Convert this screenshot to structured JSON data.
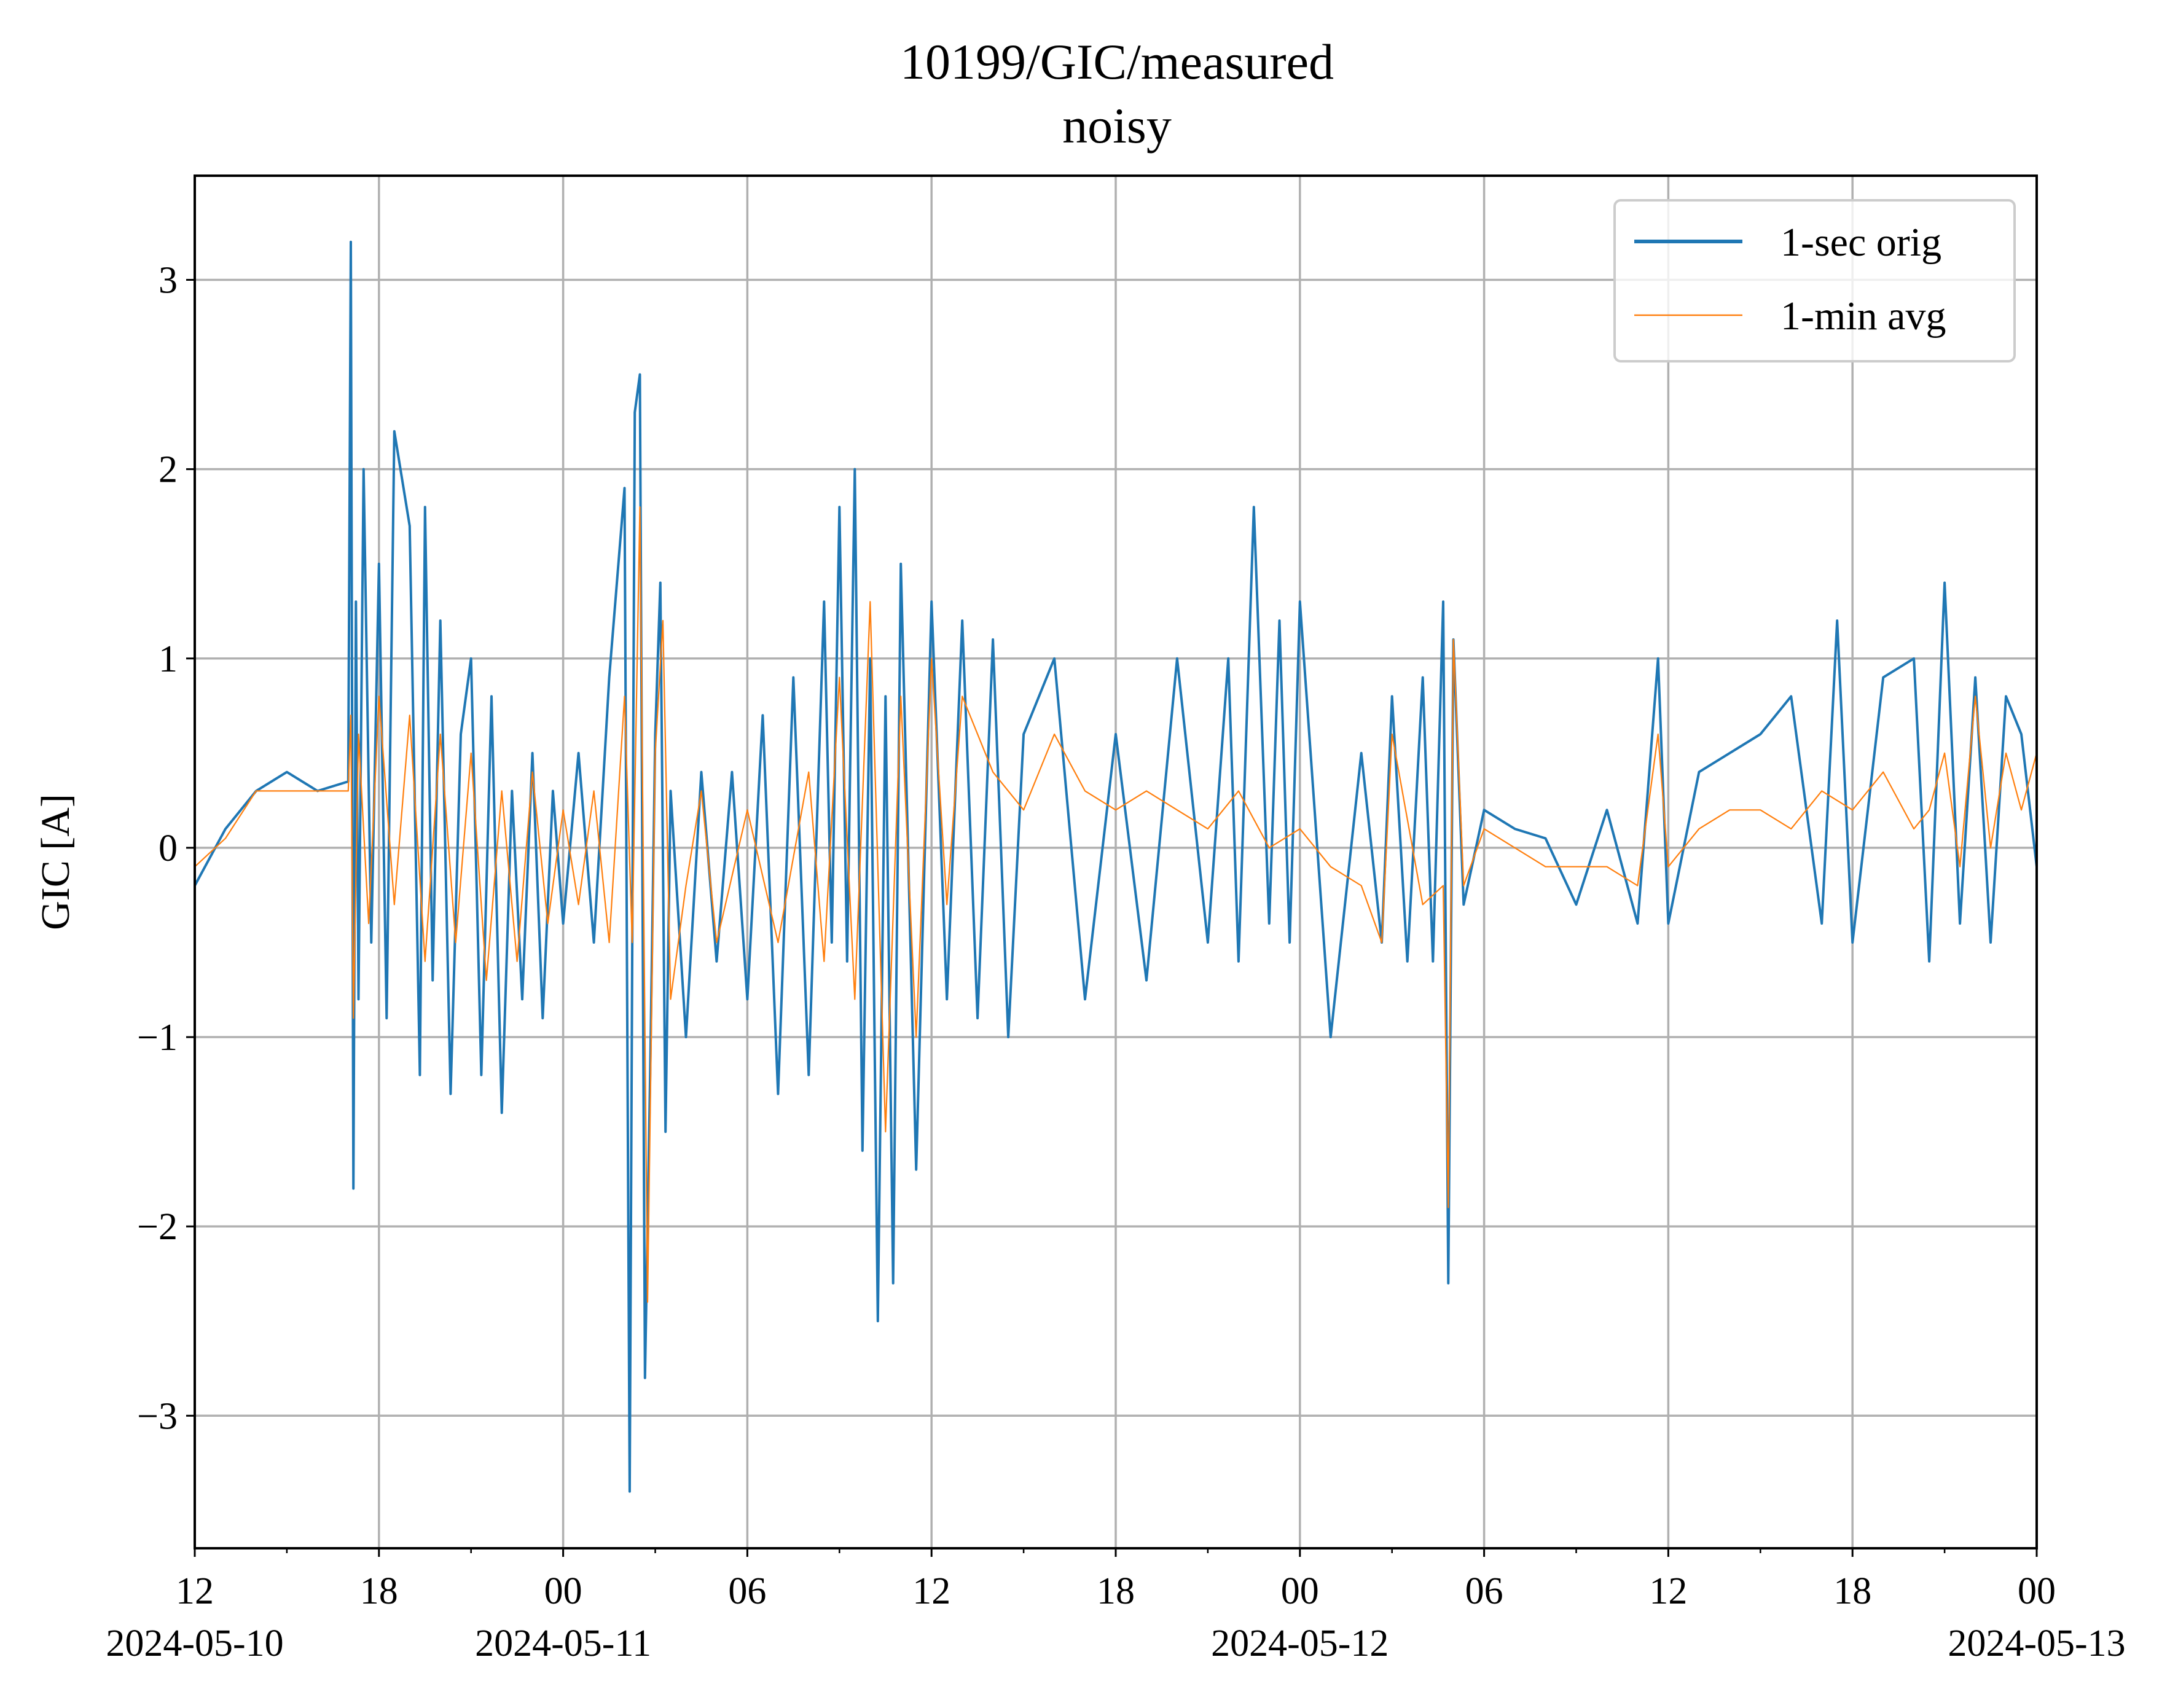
{
  "chart_data": {
    "type": "line",
    "title": "10199/GIC/measured",
    "subtitle": "noisy",
    "xlabel": "",
    "ylabel": "GIC [A]",
    "x_range": [
      "2024-05-10 12:00",
      "2024-05-13 00:00"
    ],
    "ylim": [
      -3.7,
      3.55
    ],
    "y_ticks": [
      3,
      2,
      1,
      0,
      -1,
      -2,
      -3
    ],
    "y_tick_labels": [
      "3",
      "2",
      "1",
      "0",
      "−1",
      "−2",
      "−3"
    ],
    "x_ticks": [
      {
        "time": "2024-05-10 12:00",
        "label": "12",
        "date": "2024-05-10"
      },
      {
        "time": "2024-05-10 18:00",
        "label": "18",
        "date": ""
      },
      {
        "time": "2024-05-11 00:00",
        "label": "00",
        "date": "2024-05-11"
      },
      {
        "time": "2024-05-11 06:00",
        "label": "06",
        "date": ""
      },
      {
        "time": "2024-05-11 12:00",
        "label": "12",
        "date": ""
      },
      {
        "time": "2024-05-11 18:00",
        "label": "18",
        "date": ""
      },
      {
        "time": "2024-05-12 00:00",
        "label": "00",
        "date": "2024-05-12"
      },
      {
        "time": "2024-05-12 06:00",
        "label": "06",
        "date": ""
      },
      {
        "time": "2024-05-12 12:00",
        "label": "12",
        "date": ""
      },
      {
        "time": "2024-05-12 18:00",
        "label": "18",
        "date": ""
      },
      {
        "time": "2024-05-13 00:00",
        "label": "00",
        "date": "2024-05-13"
      }
    ],
    "grid": true,
    "legend_position": "top-right",
    "series": [
      {
        "name": "1-sec orig",
        "color": "#1f77b4",
        "x": [
          "2024-05-10 12:00",
          "2024-05-10 13:00",
          "2024-05-10 14:00",
          "2024-05-10 15:00",
          "2024-05-10 16:00",
          "2024-05-10 17:00",
          "2024-05-10 17:05",
          "2024-05-10 17:10",
          "2024-05-10 17:15",
          "2024-05-10 17:20",
          "2024-05-10 17:30",
          "2024-05-10 17:45",
          "2024-05-10 18:00",
          "2024-05-10 18:15",
          "2024-05-10 18:30",
          "2024-05-10 19:00",
          "2024-05-10 19:20",
          "2024-05-10 19:30",
          "2024-05-10 19:45",
          "2024-05-10 20:00",
          "2024-05-10 20:20",
          "2024-05-10 20:40",
          "2024-05-10 21:00",
          "2024-05-10 21:20",
          "2024-05-10 21:40",
          "2024-05-10 22:00",
          "2024-05-10 22:20",
          "2024-05-10 22:40",
          "2024-05-10 23:00",
          "2024-05-10 23:20",
          "2024-05-10 23:40",
          "2024-05-11 00:00",
          "2024-05-11 00:30",
          "2024-05-11 01:00",
          "2024-05-11 01:30",
          "2024-05-11 02:00",
          "2024-05-11 02:10",
          "2024-05-11 02:20",
          "2024-05-11 02:30",
          "2024-05-11 02:40",
          "2024-05-11 02:50",
          "2024-05-11 03:00",
          "2024-05-11 03:10",
          "2024-05-11 03:20",
          "2024-05-11 03:30",
          "2024-05-11 04:00",
          "2024-05-11 04:30",
          "2024-05-11 05:00",
          "2024-05-11 05:30",
          "2024-05-11 06:00",
          "2024-05-11 06:30",
          "2024-05-11 07:00",
          "2024-05-11 07:30",
          "2024-05-11 08:00",
          "2024-05-11 08:30",
          "2024-05-11 08:45",
          "2024-05-11 09:00",
          "2024-05-11 09:15",
          "2024-05-11 09:30",
          "2024-05-11 09:45",
          "2024-05-11 10:00",
          "2024-05-11 10:15",
          "2024-05-11 10:30",
          "2024-05-11 10:45",
          "2024-05-11 11:00",
          "2024-05-11 11:30",
          "2024-05-11 12:00",
          "2024-05-11 12:30",
          "2024-05-11 13:00",
          "2024-05-11 13:30",
          "2024-05-11 14:00",
          "2024-05-11 14:30",
          "2024-05-11 15:00",
          "2024-05-11 16:00",
          "2024-05-11 17:00",
          "2024-05-11 18:00",
          "2024-05-11 19:00",
          "2024-05-11 20:00",
          "2024-05-11 21:00",
          "2024-05-11 21:40",
          "2024-05-11 22:00",
          "2024-05-11 22:30",
          "2024-05-11 23:00",
          "2024-05-11 23:20",
          "2024-05-11 23:40",
          "2024-05-12 00:00",
          "2024-05-12 01:00",
          "2024-05-12 02:00",
          "2024-05-12 02:40",
          "2024-05-12 03:00",
          "2024-05-12 03:30",
          "2024-05-12 04:00",
          "2024-05-12 04:20",
          "2024-05-12 04:40",
          "2024-05-12 04:50",
          "2024-05-12 05:00",
          "2024-05-12 05:20",
          "2024-05-12 06:00",
          "2024-05-12 07:00",
          "2024-05-12 08:00",
          "2024-05-12 09:00",
          "2024-05-12 10:00",
          "2024-05-12 11:00",
          "2024-05-12 11:40",
          "2024-05-12 12:00",
          "2024-05-12 13:00",
          "2024-05-12 14:00",
          "2024-05-12 15:00",
          "2024-05-12 16:00",
          "2024-05-12 17:00",
          "2024-05-12 17:30",
          "2024-05-12 18:00",
          "2024-05-12 19:00",
          "2024-05-12 20:00",
          "2024-05-12 20:30",
          "2024-05-12 21:00",
          "2024-05-12 21:30",
          "2024-05-12 22:00",
          "2024-05-12 22:30",
          "2024-05-12 23:00",
          "2024-05-12 23:30",
          "2024-05-13 00:00"
        ],
        "y": [
          -0.2,
          0.1,
          0.3,
          0.4,
          0.3,
          0.35,
          3.2,
          -1.8,
          1.3,
          -0.8,
          2.0,
          -0.5,
          1.5,
          -0.9,
          2.2,
          1.7,
          -1.2,
          1.8,
          -0.7,
          1.2,
          -1.3,
          0.6,
          1.0,
          -1.2,
          0.8,
          -1.4,
          0.3,
          -0.8,
          0.5,
          -0.9,
          0.3,
          -0.4,
          0.5,
          -0.5,
          0.9,
          1.9,
          -3.4,
          2.3,
          2.5,
          -2.8,
          -1.2,
          0.6,
          1.4,
          -1.5,
          0.3,
          -1.0,
          0.4,
          -0.6,
          0.4,
          -0.8,
          0.7,
          -1.3,
          0.9,
          -1.2,
          1.3,
          -0.5,
          1.8,
          -0.6,
          2.0,
          -1.6,
          1.0,
          -2.5,
          0.8,
          -2.3,
          1.5,
          -1.7,
          1.3,
          -0.8,
          1.2,
          -0.9,
          1.1,
          -1.0,
          0.6,
          1.0,
          -0.8,
          0.6,
          -0.7,
          1.0,
          -0.5,
          1.0,
          -0.6,
          1.8,
          -0.4,
          1.2,
          -0.5,
          1.3,
          -1.0,
          0.5,
          -0.5,
          0.8,
          -0.6,
          0.9,
          -0.6,
          1.3,
          -2.3,
          1.1,
          -0.3,
          0.2,
          0.1,
          0.05,
          -0.3,
          0.2,
          -0.4,
          1.0,
          -0.4,
          0.4,
          0.5,
          0.6,
          0.8,
          -0.4,
          1.2,
          -0.5,
          0.9,
          1.0,
          -0.6,
          1.4,
          -0.4,
          0.9,
          -0.5,
          0.8,
          0.6,
          -0.1
        ]
      },
      {
        "name": "1-min avg",
        "color": "#ff7f0e",
        "x": [
          "2024-05-10 12:00",
          "2024-05-10 13:00",
          "2024-05-10 14:00",
          "2024-05-10 15:00",
          "2024-05-10 16:00",
          "2024-05-10 17:00",
          "2024-05-10 17:05",
          "2024-05-10 17:10",
          "2024-05-10 17:20",
          "2024-05-10 17:40",
          "2024-05-10 18:00",
          "2024-05-10 18:30",
          "2024-05-10 19:00",
          "2024-05-10 19:30",
          "2024-05-10 20:00",
          "2024-05-10 20:30",
          "2024-05-10 21:00",
          "2024-05-10 21:30",
          "2024-05-10 22:00",
          "2024-05-10 22:30",
          "2024-05-10 23:00",
          "2024-05-10 23:30",
          "2024-05-11 00:00",
          "2024-05-11 00:30",
          "2024-05-11 01:00",
          "2024-05-11 01:30",
          "2024-05-11 02:00",
          "2024-05-11 02:15",
          "2024-05-11 02:30",
          "2024-05-11 02:45",
          "2024-05-11 03:00",
          "2024-05-11 03:15",
          "2024-05-11 03:30",
          "2024-05-11 04:00",
          "2024-05-11 04:30",
          "2024-05-11 05:00",
          "2024-05-11 06:00",
          "2024-05-11 07:00",
          "2024-05-11 08:00",
          "2024-05-11 08:30",
          "2024-05-11 09:00",
          "2024-05-11 09:30",
          "2024-05-11 10:00",
          "2024-05-11 10:30",
          "2024-05-11 11:00",
          "2024-05-11 11:30",
          "2024-05-11 12:00",
          "2024-05-11 12:30",
          "2024-05-11 13:00",
          "2024-05-11 14:00",
          "2024-05-11 15:00",
          "2024-05-11 16:00",
          "2024-05-11 17:00",
          "2024-05-11 18:00",
          "2024-05-11 19:00",
          "2024-05-11 20:00",
          "2024-05-11 21:00",
          "2024-05-11 22:00",
          "2024-05-11 23:00",
          "2024-05-12 00:00",
          "2024-05-12 01:00",
          "2024-05-12 02:00",
          "2024-05-12 02:40",
          "2024-05-12 03:00",
          "2024-05-12 04:00",
          "2024-05-12 04:40",
          "2024-05-12 04:50",
          "2024-05-12 05:00",
          "2024-05-12 05:20",
          "2024-05-12 06:00",
          "2024-05-12 07:00",
          "2024-05-12 08:00",
          "2024-05-12 09:00",
          "2024-05-12 10:00",
          "2024-05-12 11:00",
          "2024-05-12 11:40",
          "2024-05-12 12:00",
          "2024-05-12 13:00",
          "2024-05-12 14:00",
          "2024-05-12 15:00",
          "2024-05-12 16:00",
          "2024-05-12 17:00",
          "2024-05-12 18:00",
          "2024-05-12 19:00",
          "2024-05-12 20:00",
          "2024-05-12 20:30",
          "2024-05-12 21:00",
          "2024-05-12 21:30",
          "2024-05-12 22:00",
          "2024-05-12 22:30",
          "2024-05-12 23:00",
          "2024-05-12 23:30",
          "2024-05-13 00:00"
        ],
        "y": [
          -0.1,
          0.05,
          0.3,
          0.3,
          0.3,
          0.3,
          0.7,
          -0.9,
          0.6,
          -0.4,
          0.8,
          -0.3,
          0.7,
          -0.6,
          0.6,
          -0.5,
          0.5,
          -0.7,
          0.3,
          -0.6,
          0.4,
          -0.4,
          0.2,
          -0.3,
          0.3,
          -0.5,
          0.8,
          -0.5,
          1.8,
          -2.4,
          0.5,
          1.2,
          -0.8,
          -0.2,
          0.3,
          -0.5,
          0.2,
          -0.5,
          0.4,
          -0.6,
          0.9,
          -0.8,
          1.3,
          -1.5,
          0.8,
          -1.0,
          1.0,
          -0.3,
          0.8,
          0.4,
          0.2,
          0.6,
          0.3,
          0.2,
          0.3,
          0.2,
          0.1,
          0.3,
          0.0,
          0.1,
          -0.1,
          -0.2,
          -0.5,
          0.6,
          -0.3,
          -0.2,
          -1.9,
          1.1,
          -0.2,
          0.1,
          0.0,
          -0.1,
          -0.1,
          -0.1,
          -0.2,
          0.6,
          -0.1,
          0.1,
          0.2,
          0.2,
          0.1,
          0.3,
          0.2,
          0.4,
          0.1,
          0.2,
          0.5,
          -0.1,
          0.8,
          0.0,
          0.5,
          0.2,
          0.5
        ]
      }
    ]
  }
}
